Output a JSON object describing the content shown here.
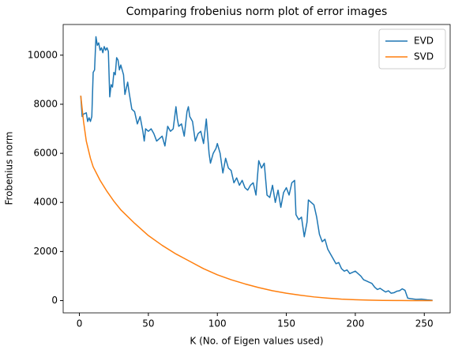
{
  "chart_data": {
    "type": "line",
    "title": "Comparing frobenius norm plot of error images",
    "xlabel": "K (No. of Eigen values used)",
    "ylabel": "Frobenius norm",
    "xlim": [
      -11.75,
      268.75
    ],
    "xticks": [
      0,
      50,
      100,
      150,
      200,
      250
    ],
    "ylim": [
      -500,
      11250
    ],
    "yticks": [
      0,
      2000,
      4000,
      6000,
      8000,
      10000
    ],
    "grid": false,
    "legend": "upper right",
    "series": [
      {
        "name": "EVD",
        "color": "#1f77b4",
        "x": [
          1,
          2,
          3,
          5,
          6,
          7,
          8,
          9,
          10,
          11,
          12,
          13,
          14,
          15,
          16,
          17,
          18,
          19,
          20,
          21,
          22,
          23,
          24,
          25,
          26,
          27,
          28,
          29,
          30,
          32,
          33,
          35,
          36,
          38,
          40,
          42,
          44,
          46,
          47,
          48,
          50,
          52,
          54,
          56,
          58,
          60,
          62,
          64,
          66,
          68,
          70,
          71,
          72,
          74,
          76,
          78,
          79,
          80,
          82,
          84,
          86,
          88,
          90,
          92,
          93,
          94,
          95,
          97,
          99,
          100,
          102,
          104,
          106,
          108,
          110,
          112,
          114,
          116,
          118,
          120,
          122,
          124,
          126,
          128,
          130,
          132,
          134,
          136,
          138,
          140,
          142,
          144,
          146,
          148,
          150,
          152,
          154,
          156,
          157,
          159,
          161,
          163,
          165,
          166,
          168,
          170,
          172,
          174,
          176,
          178,
          180,
          182,
          184,
          186,
          188,
          190,
          192,
          194,
          196,
          198,
          200,
          202,
          204,
          206,
          208,
          210,
          212,
          214,
          216,
          218,
          220,
          222,
          224,
          226,
          228,
          230,
          232,
          234,
          236,
          238,
          240,
          244,
          248,
          252,
          256
        ],
        "values": [
          8350,
          7500,
          7600,
          7650,
          7300,
          7450,
          7300,
          7500,
          9300,
          9400,
          10750,
          10400,
          10500,
          10200,
          10300,
          10100,
          10350,
          10200,
          10300,
          10150,
          8300,
          8800,
          8700,
          9300,
          9200,
          9900,
          9800,
          9400,
          9600,
          9200,
          8400,
          8900,
          8500,
          7800,
          7700,
          7200,
          7500,
          6900,
          6500,
          7000,
          6900,
          7000,
          6800,
          6500,
          6600,
          6700,
          6300,
          7100,
          6900,
          7000,
          7900,
          7400,
          7100,
          7200,
          6700,
          7700,
          7900,
          7500,
          7300,
          6500,
          6800,
          6900,
          6400,
          7400,
          6700,
          6000,
          5600,
          6000,
          6200,
          6400,
          6000,
          5200,
          5800,
          5400,
          5300,
          4800,
          5000,
          4700,
          4900,
          4600,
          4500,
          4700,
          4800,
          4300,
          5700,
          5400,
          5600,
          4300,
          4200,
          4700,
          4000,
          4500,
          3800,
          4400,
          4600,
          4300,
          4800,
          4900,
          3500,
          3300,
          3400,
          2600,
          3200,
          4100,
          4000,
          3900,
          3400,
          2700,
          2400,
          2500,
          2100,
          1900,
          1700,
          1500,
          1550,
          1300,
          1200,
          1250,
          1100,
          1150,
          1200,
          1100,
          1000,
          850,
          800,
          750,
          700,
          550,
          450,
          500,
          420,
          350,
          400,
          300,
          320,
          380,
          400,
          480,
          420,
          100,
          80,
          50,
          60,
          30,
          10
        ]
      },
      {
        "name": "SVD",
        "color": "#ff7f0e",
        "x": [
          1,
          3,
          5,
          8,
          10,
          15,
          20,
          25,
          30,
          40,
          50,
          60,
          70,
          80,
          90,
          100,
          110,
          120,
          130,
          140,
          150,
          160,
          170,
          180,
          190,
          200,
          210,
          220,
          230,
          240,
          250,
          256
        ],
        "values": [
          8350,
          7300,
          6500,
          5800,
          5450,
          4900,
          4450,
          4050,
          3700,
          3150,
          2650,
          2250,
          1900,
          1600,
          1300,
          1050,
          850,
          680,
          530,
          400,
          300,
          220,
          150,
          100,
          60,
          35,
          18,
          8,
          3,
          1,
          0,
          0
        ]
      }
    ]
  }
}
